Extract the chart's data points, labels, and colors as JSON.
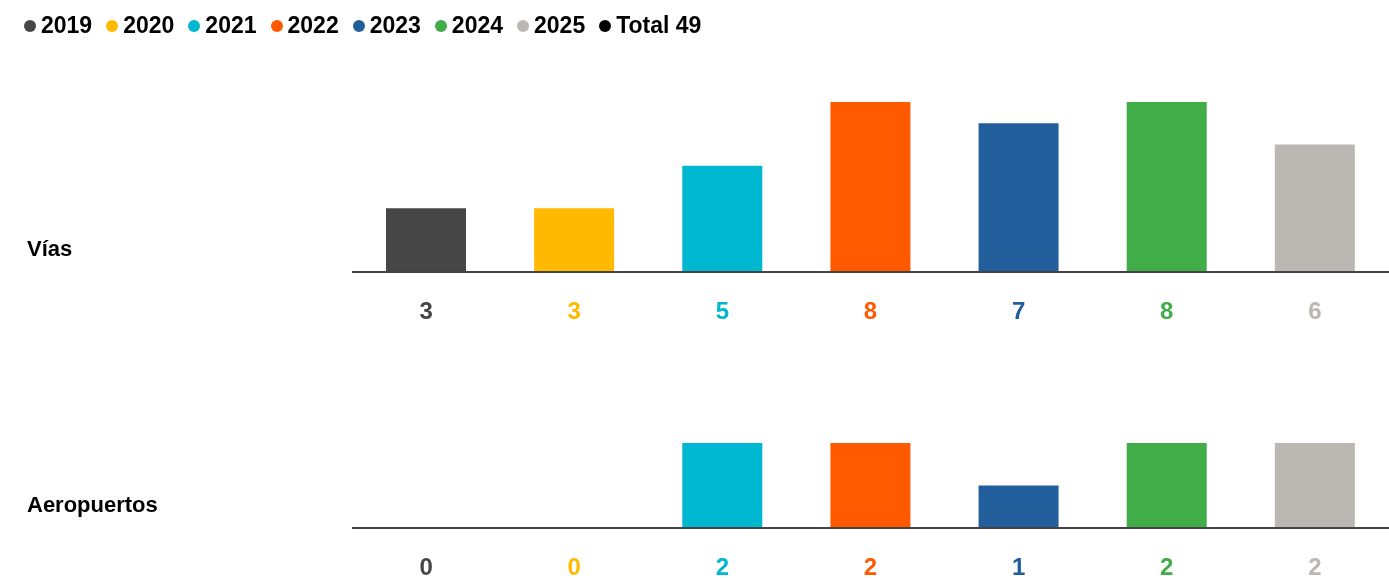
{
  "chart_data": [
    {
      "type": "bar",
      "ylabel": "Vías",
      "categories": [
        null,
        null,
        null,
        null,
        null,
        null,
        null
      ],
      "ylim": [
        0,
        8
      ],
      "stacked": true,
      "data_labels": true,
      "legend": "top left",
      "annotations": [
        "Total 49"
      ],
      "series": [
        {
          "name": "2019",
          "color": "#464646",
          "values": [
            3,
            null,
            null,
            null,
            null,
            null,
            null
          ]
        },
        {
          "name": "2020",
          "color": "#ffb900",
          "values": [
            null,
            3,
            null,
            null,
            null,
            null,
            null
          ]
        },
        {
          "name": "2021",
          "color": "#00b7d2",
          "values": [
            null,
            null,
            5,
            null,
            null,
            null,
            null
          ]
        },
        {
          "name": "2022",
          "color": "#ff5a00",
          "values": [
            null,
            null,
            null,
            8,
            null,
            null,
            null
          ]
        },
        {
          "name": "2023",
          "color": "#225e9c",
          "values": [
            null,
            null,
            null,
            null,
            7,
            null,
            null
          ]
        },
        {
          "name": "2024",
          "color": "#41ad49",
          "values": [
            null,
            null,
            null,
            null,
            null,
            8,
            null
          ]
        },
        {
          "name": "2025",
          "color": "#bbb8b3",
          "values": [
            null,
            null,
            null,
            null,
            null,
            null,
            6
          ]
        }
      ]
    },
    {
      "type": "bar",
      "ylabel": "Aeropuertos",
      "categories": [
        null,
        null,
        null,
        null,
        null,
        null,
        null
      ],
      "ylim": [
        0,
        2
      ],
      "stacked": true,
      "data_labels": true,
      "series": [
        {
          "color": "#464646",
          "values": [
            0,
            null,
            null,
            null,
            null,
            null,
            null
          ]
        },
        {
          "color": "#ffb900",
          "values": [
            null,
            0,
            null,
            null,
            null,
            null,
            null
          ]
        },
        {
          "color": "#00b7d2",
          "values": [
            null,
            null,
            2,
            null,
            null,
            null,
            null
          ]
        },
        {
          "color": "#ff5a00",
          "values": [
            null,
            null,
            null,
            2,
            null,
            null,
            null
          ]
        },
        {
          "color": "#225e9c",
          "values": [
            null,
            null,
            null,
            null,
            1,
            null,
            null
          ]
        },
        {
          "color": "#41ad49",
          "values": [
            null,
            null,
            null,
            null,
            null,
            2,
            null
          ]
        },
        {
          "color": "#bbb8b3",
          "values": [
            null,
            null,
            null,
            null,
            null,
            null,
            2
          ]
        }
      ]
    }
  ]
}
